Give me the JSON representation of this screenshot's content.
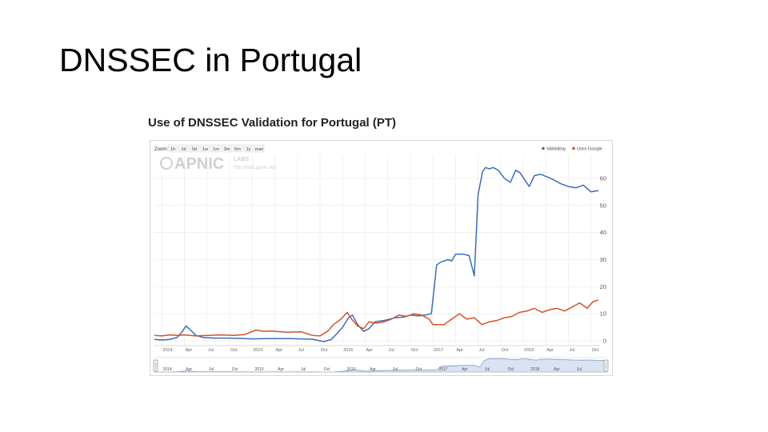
{
  "slide": {
    "title": "DNSSEC in Portugal"
  },
  "chart_heading": "Use of DNSSEC Validation for Portugal (PT)",
  "zoom": {
    "label": "Zoom:",
    "buttons": [
      "1h",
      "1d",
      "5d",
      "1w",
      "1m",
      "3m",
      "6m",
      "1y",
      "max"
    ]
  },
  "watermark": {
    "brand": "APNIC",
    "labs": "LABS",
    "url": "http://labs.apnic.net/"
  },
  "colors": {
    "validating": "#3d6db5",
    "uses_google": "#d2522a",
    "grid": "#ebebeb",
    "navigator_fill": "#d9e3f2"
  },
  "chart_data": {
    "type": "line",
    "title": "Use of DNSSEC Validation for Portugal (PT)",
    "xlabel": "",
    "ylabel": "",
    "xlim": [
      0,
      57.5
    ],
    "ylim": [
      0,
      65
    ],
    "y_ticks": [
      0,
      10,
      20,
      30,
      40,
      50,
      60
    ],
    "x_ticks": [
      {
        "m": 0,
        "label": "2014"
      },
      {
        "m": 3,
        "label": "Apr"
      },
      {
        "m": 6,
        "label": "Jul"
      },
      {
        "m": 9,
        "label": "Oct"
      },
      {
        "m": 12,
        "label": "2015"
      },
      {
        "m": 15,
        "label": "Apr"
      },
      {
        "m": 18,
        "label": "Jul"
      },
      {
        "m": 21,
        "label": "Oct"
      },
      {
        "m": 24,
        "label": "2016"
      },
      {
        "m": 27,
        "label": "Apr"
      },
      {
        "m": 30,
        "label": "Jul"
      },
      {
        "m": 33,
        "label": "Oct"
      },
      {
        "m": 36,
        "label": "2017"
      },
      {
        "m": 39,
        "label": "Apr"
      },
      {
        "m": 42,
        "label": "Jul"
      },
      {
        "m": 45,
        "label": "Oct"
      },
      {
        "m": 48,
        "label": "2018"
      },
      {
        "m": 51,
        "label": "Apr"
      },
      {
        "m": 54,
        "label": "Jul"
      },
      {
        "m": 57,
        "label": "Oct"
      }
    ],
    "grid": true,
    "legend_position": "top-right",
    "series": [
      {
        "name": "Validating",
        "color": "#3d6db5",
        "points": [
          [
            -1.0,
            0.5
          ],
          [
            0.0,
            0.3
          ],
          [
            1.0,
            0.5
          ],
          [
            2.0,
            1.2
          ],
          [
            2.6,
            3.0
          ],
          [
            3.2,
            5.5
          ],
          [
            3.8,
            4.0
          ],
          [
            4.5,
            2.0
          ],
          [
            5.5,
            1.2
          ],
          [
            7.0,
            1.0
          ],
          [
            9.0,
            1.0
          ],
          [
            11.0,
            0.8
          ],
          [
            12.0,
            0.7
          ],
          [
            14.0,
            0.8
          ],
          [
            17.0,
            0.8
          ],
          [
            20.0,
            0.6
          ],
          [
            21.5,
            -0.3
          ],
          [
            22.5,
            0.5
          ],
          [
            23.2,
            2.5
          ],
          [
            24.0,
            5.0
          ],
          [
            24.8,
            8.5
          ],
          [
            25.3,
            9.5
          ],
          [
            26.0,
            6.0
          ],
          [
            26.8,
            3.5
          ],
          [
            27.5,
            4.5
          ],
          [
            28.3,
            7.0
          ],
          [
            29.5,
            7.5
          ],
          [
            31.0,
            8.5
          ],
          [
            32.2,
            8.8
          ],
          [
            33.0,
            9.5
          ],
          [
            34.0,
            9.2
          ],
          [
            35.0,
            9.5
          ],
          [
            35.8,
            10.0
          ],
          [
            36.5,
            28.0
          ],
          [
            37.0,
            29.0
          ],
          [
            38.0,
            30.0
          ],
          [
            38.5,
            29.5
          ],
          [
            39.0,
            32.0
          ],
          [
            40.0,
            32.0
          ],
          [
            40.8,
            31.5
          ],
          [
            41.5,
            24.0
          ],
          [
            42.0,
            54.0
          ],
          [
            42.6,
            62.5
          ],
          [
            43.0,
            64.0
          ],
          [
            43.5,
            63.5
          ],
          [
            44.0,
            64.0
          ],
          [
            44.7,
            63.0
          ],
          [
            45.5,
            60.0
          ],
          [
            46.3,
            58.5
          ],
          [
            47.0,
            63.0
          ],
          [
            47.6,
            62.0
          ],
          [
            48.3,
            59.0
          ],
          [
            48.8,
            57.0
          ],
          [
            49.5,
            61.0
          ],
          [
            50.3,
            61.5
          ],
          [
            51.2,
            60.5
          ],
          [
            52.0,
            59.5
          ],
          [
            53.0,
            58.0
          ],
          [
            54.0,
            57.0
          ],
          [
            55.0,
            56.5
          ],
          [
            56.0,
            57.5
          ],
          [
            57.0,
            55.0
          ],
          [
            58.0,
            55.5
          ]
        ]
      },
      {
        "name": "Uses Google",
        "color": "#d2522a",
        "points": [
          [
            -1.0,
            2.0
          ],
          [
            0.0,
            1.8
          ],
          [
            1.0,
            2.2
          ],
          [
            2.0,
            2.0
          ],
          [
            3.0,
            2.2
          ],
          [
            4.5,
            1.8
          ],
          [
            6.0,
            2.0
          ],
          [
            8.0,
            2.2
          ],
          [
            9.5,
            2.0
          ],
          [
            11.0,
            2.3
          ],
          [
            12.5,
            4.0
          ],
          [
            13.5,
            3.5
          ],
          [
            14.5,
            3.6
          ],
          [
            16.5,
            3.2
          ],
          [
            18.5,
            3.3
          ],
          [
            20.0,
            2.0
          ],
          [
            21.0,
            1.8
          ],
          [
            22.0,
            3.5
          ],
          [
            22.8,
            6.0
          ],
          [
            23.8,
            8.0
          ],
          [
            24.6,
            10.5
          ],
          [
            25.2,
            8.0
          ],
          [
            26.0,
            5.5
          ],
          [
            26.8,
            4.5
          ],
          [
            27.5,
            7.0
          ],
          [
            28.5,
            6.5
          ],
          [
            29.5,
            7.0
          ],
          [
            30.5,
            8.0
          ],
          [
            31.5,
            9.5
          ],
          [
            32.5,
            9.0
          ],
          [
            33.5,
            10.0
          ],
          [
            34.5,
            9.5
          ],
          [
            35.5,
            8.0
          ],
          [
            36.0,
            6.0
          ],
          [
            37.5,
            6.0
          ],
          [
            38.5,
            8.0
          ],
          [
            39.5,
            10.0
          ],
          [
            40.5,
            8.0
          ],
          [
            41.5,
            8.5
          ],
          [
            42.5,
            6.0
          ],
          [
            43.5,
            7.0
          ],
          [
            44.5,
            7.5
          ],
          [
            45.5,
            8.5
          ],
          [
            46.5,
            9.0
          ],
          [
            47.5,
            10.5
          ],
          [
            48.5,
            11.0
          ],
          [
            49.5,
            12.0
          ],
          [
            50.5,
            10.5
          ],
          [
            51.5,
            11.5
          ],
          [
            52.5,
            12.0
          ],
          [
            53.5,
            11.0
          ],
          [
            54.5,
            12.5
          ],
          [
            55.5,
            14.0
          ],
          [
            56.5,
            12.0
          ],
          [
            57.3,
            14.5
          ],
          [
            58.0,
            15.0
          ]
        ]
      }
    ],
    "navigator": {
      "ticks": [
        "2014",
        "Apr",
        "Jul",
        "Oct",
        "2015",
        "Apr",
        "Jul",
        "Oct",
        "2016",
        "Apr",
        "Jul",
        "Oct",
        "2017",
        "Apr",
        "Jul",
        "Oct",
        "2018",
        "Apr",
        "Jul"
      ]
    }
  }
}
